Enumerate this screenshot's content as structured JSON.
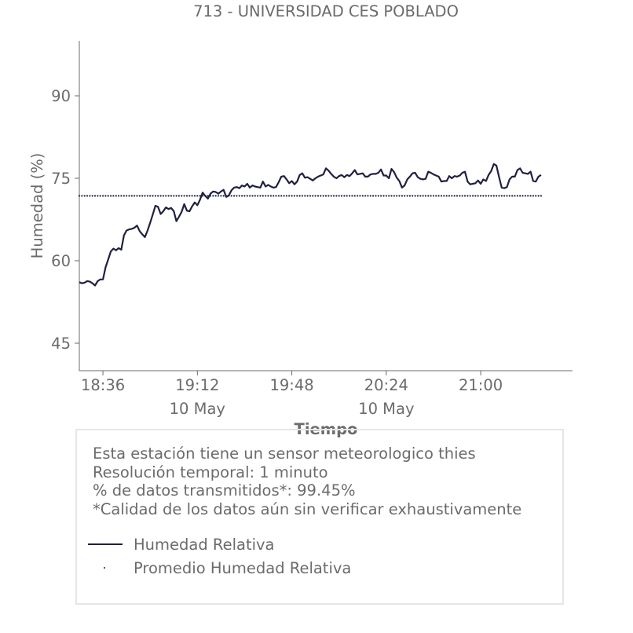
{
  "chart_data": {
    "type": "line",
    "title": "713 - UNIVERSIDAD CES POBLADO",
    "xlabel": "Tiempo",
    "ylabel": "Humedad (%)",
    "ylim": [
      40,
      100
    ],
    "xlim": [
      "18:27",
      "21:35"
    ],
    "y_ticks": [
      {
        "value": 45,
        "label": "45"
      },
      {
        "value": 60,
        "label": "60"
      },
      {
        "value": 75,
        "label": "75"
      },
      {
        "value": 90,
        "label": "90"
      }
    ],
    "x_ticks": [
      {
        "time": "18:36",
        "label": "18:36",
        "sublabel": ""
      },
      {
        "time": "19:12",
        "label": "19:12",
        "sublabel": "10 May"
      },
      {
        "time": "19:48",
        "label": "19:48",
        "sublabel": ""
      },
      {
        "time": "20:24",
        "label": "20:24",
        "sublabel": "10 May"
      },
      {
        "time": "21:00",
        "label": "21:00",
        "sublabel": ""
      }
    ],
    "grid": false,
    "series": [
      {
        "name": "Humedad Relativa",
        "style": "solid",
        "color": "#1f2040",
        "points": [
          [
            "18:27",
            56.1
          ],
          [
            "18:28",
            55.9
          ],
          [
            "18:29",
            56.0
          ],
          [
            "18:30",
            56.3
          ],
          [
            "18:31",
            56.2
          ],
          [
            "18:32",
            55.9
          ],
          [
            "18:33",
            55.5
          ],
          [
            "18:34",
            56.3
          ],
          [
            "18:35",
            56.6
          ],
          [
            "18:36",
            56.6
          ],
          [
            "18:37",
            58.8
          ],
          [
            "18:38",
            60.2
          ],
          [
            "18:39",
            61.7
          ],
          [
            "18:40",
            62.2
          ],
          [
            "18:41",
            61.9
          ],
          [
            "18:42",
            62.3
          ],
          [
            "18:43",
            62.0
          ],
          [
            "18:44",
            64.6
          ],
          [
            "18:45",
            65.5
          ],
          [
            "18:46",
            65.7
          ],
          [
            "18:47",
            65.8
          ],
          [
            "18:48",
            66.0
          ],
          [
            "18:49",
            66.4
          ],
          [
            "18:50",
            65.4
          ],
          [
            "18:51",
            64.8
          ],
          [
            "18:52",
            64.3
          ],
          [
            "18:53",
            65.5
          ],
          [
            "18:54",
            66.9
          ],
          [
            "18:55",
            68.4
          ],
          [
            "18:56",
            70.0
          ],
          [
            "18:57",
            69.8
          ],
          [
            "18:58",
            68.5
          ],
          [
            "18:59",
            69.0
          ],
          [
            "19:00",
            69.7
          ],
          [
            "19:01",
            69.4
          ],
          [
            "19:02",
            69.6
          ],
          [
            "19:03",
            69.0
          ],
          [
            "19:04",
            67.2
          ],
          [
            "19:05",
            68.0
          ],
          [
            "19:06",
            68.9
          ],
          [
            "19:07",
            70.3
          ],
          [
            "19:08",
            69.1
          ],
          [
            "19:09",
            69.0
          ],
          [
            "19:10",
            69.9
          ],
          [
            "19:11",
            70.6
          ],
          [
            "19:12",
            70.1
          ],
          [
            "19:13",
            71.1
          ],
          [
            "19:14",
            72.4
          ],
          [
            "19:15",
            71.8
          ],
          [
            "19:16",
            71.3
          ],
          [
            "19:17",
            72.2
          ],
          [
            "19:18",
            72.6
          ],
          [
            "19:19",
            72.5
          ],
          [
            "19:20",
            72.2
          ],
          [
            "19:21",
            72.6
          ],
          [
            "19:22",
            72.9
          ],
          [
            "19:23",
            71.6
          ],
          [
            "19:24",
            71.9
          ],
          [
            "19:25",
            72.8
          ],
          [
            "19:26",
            73.3
          ],
          [
            "19:27",
            73.4
          ],
          [
            "19:28",
            73.2
          ],
          [
            "19:29",
            73.7
          ],
          [
            "19:30",
            73.5
          ],
          [
            "19:31",
            74.0
          ],
          [
            "19:32",
            73.3
          ],
          [
            "19:33",
            73.7
          ],
          [
            "19:34",
            73.5
          ],
          [
            "19:35",
            73.4
          ],
          [
            "19:36",
            73.3
          ],
          [
            "19:37",
            74.4
          ],
          [
            "19:38",
            73.5
          ],
          [
            "19:39",
            73.8
          ],
          [
            "19:40",
            73.5
          ],
          [
            "19:41",
            73.3
          ],
          [
            "19:42",
            73.4
          ],
          [
            "19:43",
            74.3
          ],
          [
            "19:44",
            75.3
          ],
          [
            "19:45",
            75.4
          ],
          [
            "19:46",
            74.8
          ],
          [
            "19:47",
            74.1
          ],
          [
            "19:48",
            74.5
          ],
          [
            "19:49",
            73.9
          ],
          [
            "19:50",
            74.4
          ],
          [
            "19:51",
            75.6
          ],
          [
            "19:52",
            75.9
          ],
          [
            "19:53",
            75.1
          ],
          [
            "19:54",
            75.2
          ],
          [
            "19:55",
            74.9
          ],
          [
            "19:56",
            74.6
          ],
          [
            "19:57",
            75.0
          ],
          [
            "19:58",
            75.3
          ],
          [
            "19:59",
            75.5
          ],
          [
            "20:00",
            75.7
          ],
          [
            "20:01",
            76.8
          ],
          [
            "20:02",
            76.4
          ],
          [
            "20:03",
            75.8
          ],
          [
            "20:04",
            75.3
          ],
          [
            "20:05",
            75.0
          ],
          [
            "20:06",
            75.4
          ],
          [
            "20:07",
            75.6
          ],
          [
            "20:08",
            75.2
          ],
          [
            "20:09",
            75.6
          ],
          [
            "20:10",
            75.4
          ],
          [
            "20:11",
            75.9
          ],
          [
            "20:12",
            76.5
          ],
          [
            "20:13",
            75.7
          ],
          [
            "20:14",
            75.8
          ],
          [
            "20:15",
            75.9
          ],
          [
            "20:16",
            75.3
          ],
          [
            "20:17",
            75.3
          ],
          [
            "20:18",
            75.7
          ],
          [
            "20:19",
            75.8
          ],
          [
            "20:20",
            75.8
          ],
          [
            "20:21",
            76.0
          ],
          [
            "20:22",
            76.6
          ],
          [
            "20:23",
            75.5
          ],
          [
            "20:24",
            75.5
          ],
          [
            "20:25",
            75.0
          ],
          [
            "20:26",
            76.7
          ],
          [
            "20:27",
            76.1
          ],
          [
            "20:28",
            75.1
          ],
          [
            "20:29",
            74.5
          ],
          [
            "20:30",
            73.3
          ],
          [
            "20:31",
            73.7
          ],
          [
            "20:32",
            74.8
          ],
          [
            "20:33",
            75.3
          ],
          [
            "20:34",
            75.9
          ],
          [
            "20:35",
            76.0
          ],
          [
            "20:36",
            75.2
          ],
          [
            "20:37",
            74.9
          ],
          [
            "20:38",
            74.8
          ],
          [
            "20:39",
            74.9
          ],
          [
            "20:40",
            76.2
          ],
          [
            "20:41",
            76.0
          ],
          [
            "20:42",
            75.7
          ],
          [
            "20:43",
            75.5
          ],
          [
            "20:44",
            75.3
          ],
          [
            "20:45",
            74.4
          ],
          [
            "20:46",
            74.5
          ],
          [
            "20:47",
            74.5
          ],
          [
            "20:48",
            75.4
          ],
          [
            "20:49",
            75.0
          ],
          [
            "20:50",
            75.4
          ],
          [
            "20:51",
            75.3
          ],
          [
            "20:52",
            75.5
          ],
          [
            "20:53",
            76.0
          ],
          [
            "20:54",
            76.2
          ],
          [
            "20:55",
            74.4
          ],
          [
            "20:56",
            73.9
          ],
          [
            "20:57",
            74.0
          ],
          [
            "20:58",
            74.1
          ],
          [
            "20:59",
            74.6
          ],
          [
            "21:00",
            74.0
          ],
          [
            "21:01",
            74.8
          ],
          [
            "21:02",
            74.5
          ],
          [
            "21:03",
            75.6
          ],
          [
            "21:04",
            76.3
          ],
          [
            "21:05",
            77.6
          ],
          [
            "21:06",
            77.3
          ],
          [
            "21:07",
            75.2
          ],
          [
            "21:08",
            73.3
          ],
          [
            "21:09",
            73.2
          ],
          [
            "21:10",
            73.4
          ],
          [
            "21:11",
            74.8
          ],
          [
            "21:12",
            75.3
          ],
          [
            "21:13",
            75.3
          ],
          [
            "21:14",
            76.5
          ],
          [
            "21:15",
            76.8
          ],
          [
            "21:16",
            76.0
          ],
          [
            "21:17",
            75.9
          ],
          [
            "21:18",
            75.8
          ],
          [
            "21:19",
            76.2
          ],
          [
            "21:20",
            74.5
          ],
          [
            "21:21",
            74.4
          ],
          [
            "21:22",
            75.3
          ],
          [
            "21:23",
            75.6
          ]
        ]
      },
      {
        "name": "Promedio Humedad Relativa",
        "style": "dotted",
        "color": "#1f2040",
        "value": 71.8
      }
    ]
  },
  "info": {
    "lines": [
      "Esta estación tiene un sensor meteorologico thies",
      "Resolución temporal: 1 minuto",
      "% de datos transmitidos*: 99.45%",
      "*Calidad de los datos aún sin verificar exhaustivamente"
    ]
  },
  "legend": {
    "items": [
      {
        "label": "Humedad Relativa",
        "style": "line"
      },
      {
        "label": "Promedio Humedad Relativa",
        "style": "dot"
      }
    ]
  }
}
